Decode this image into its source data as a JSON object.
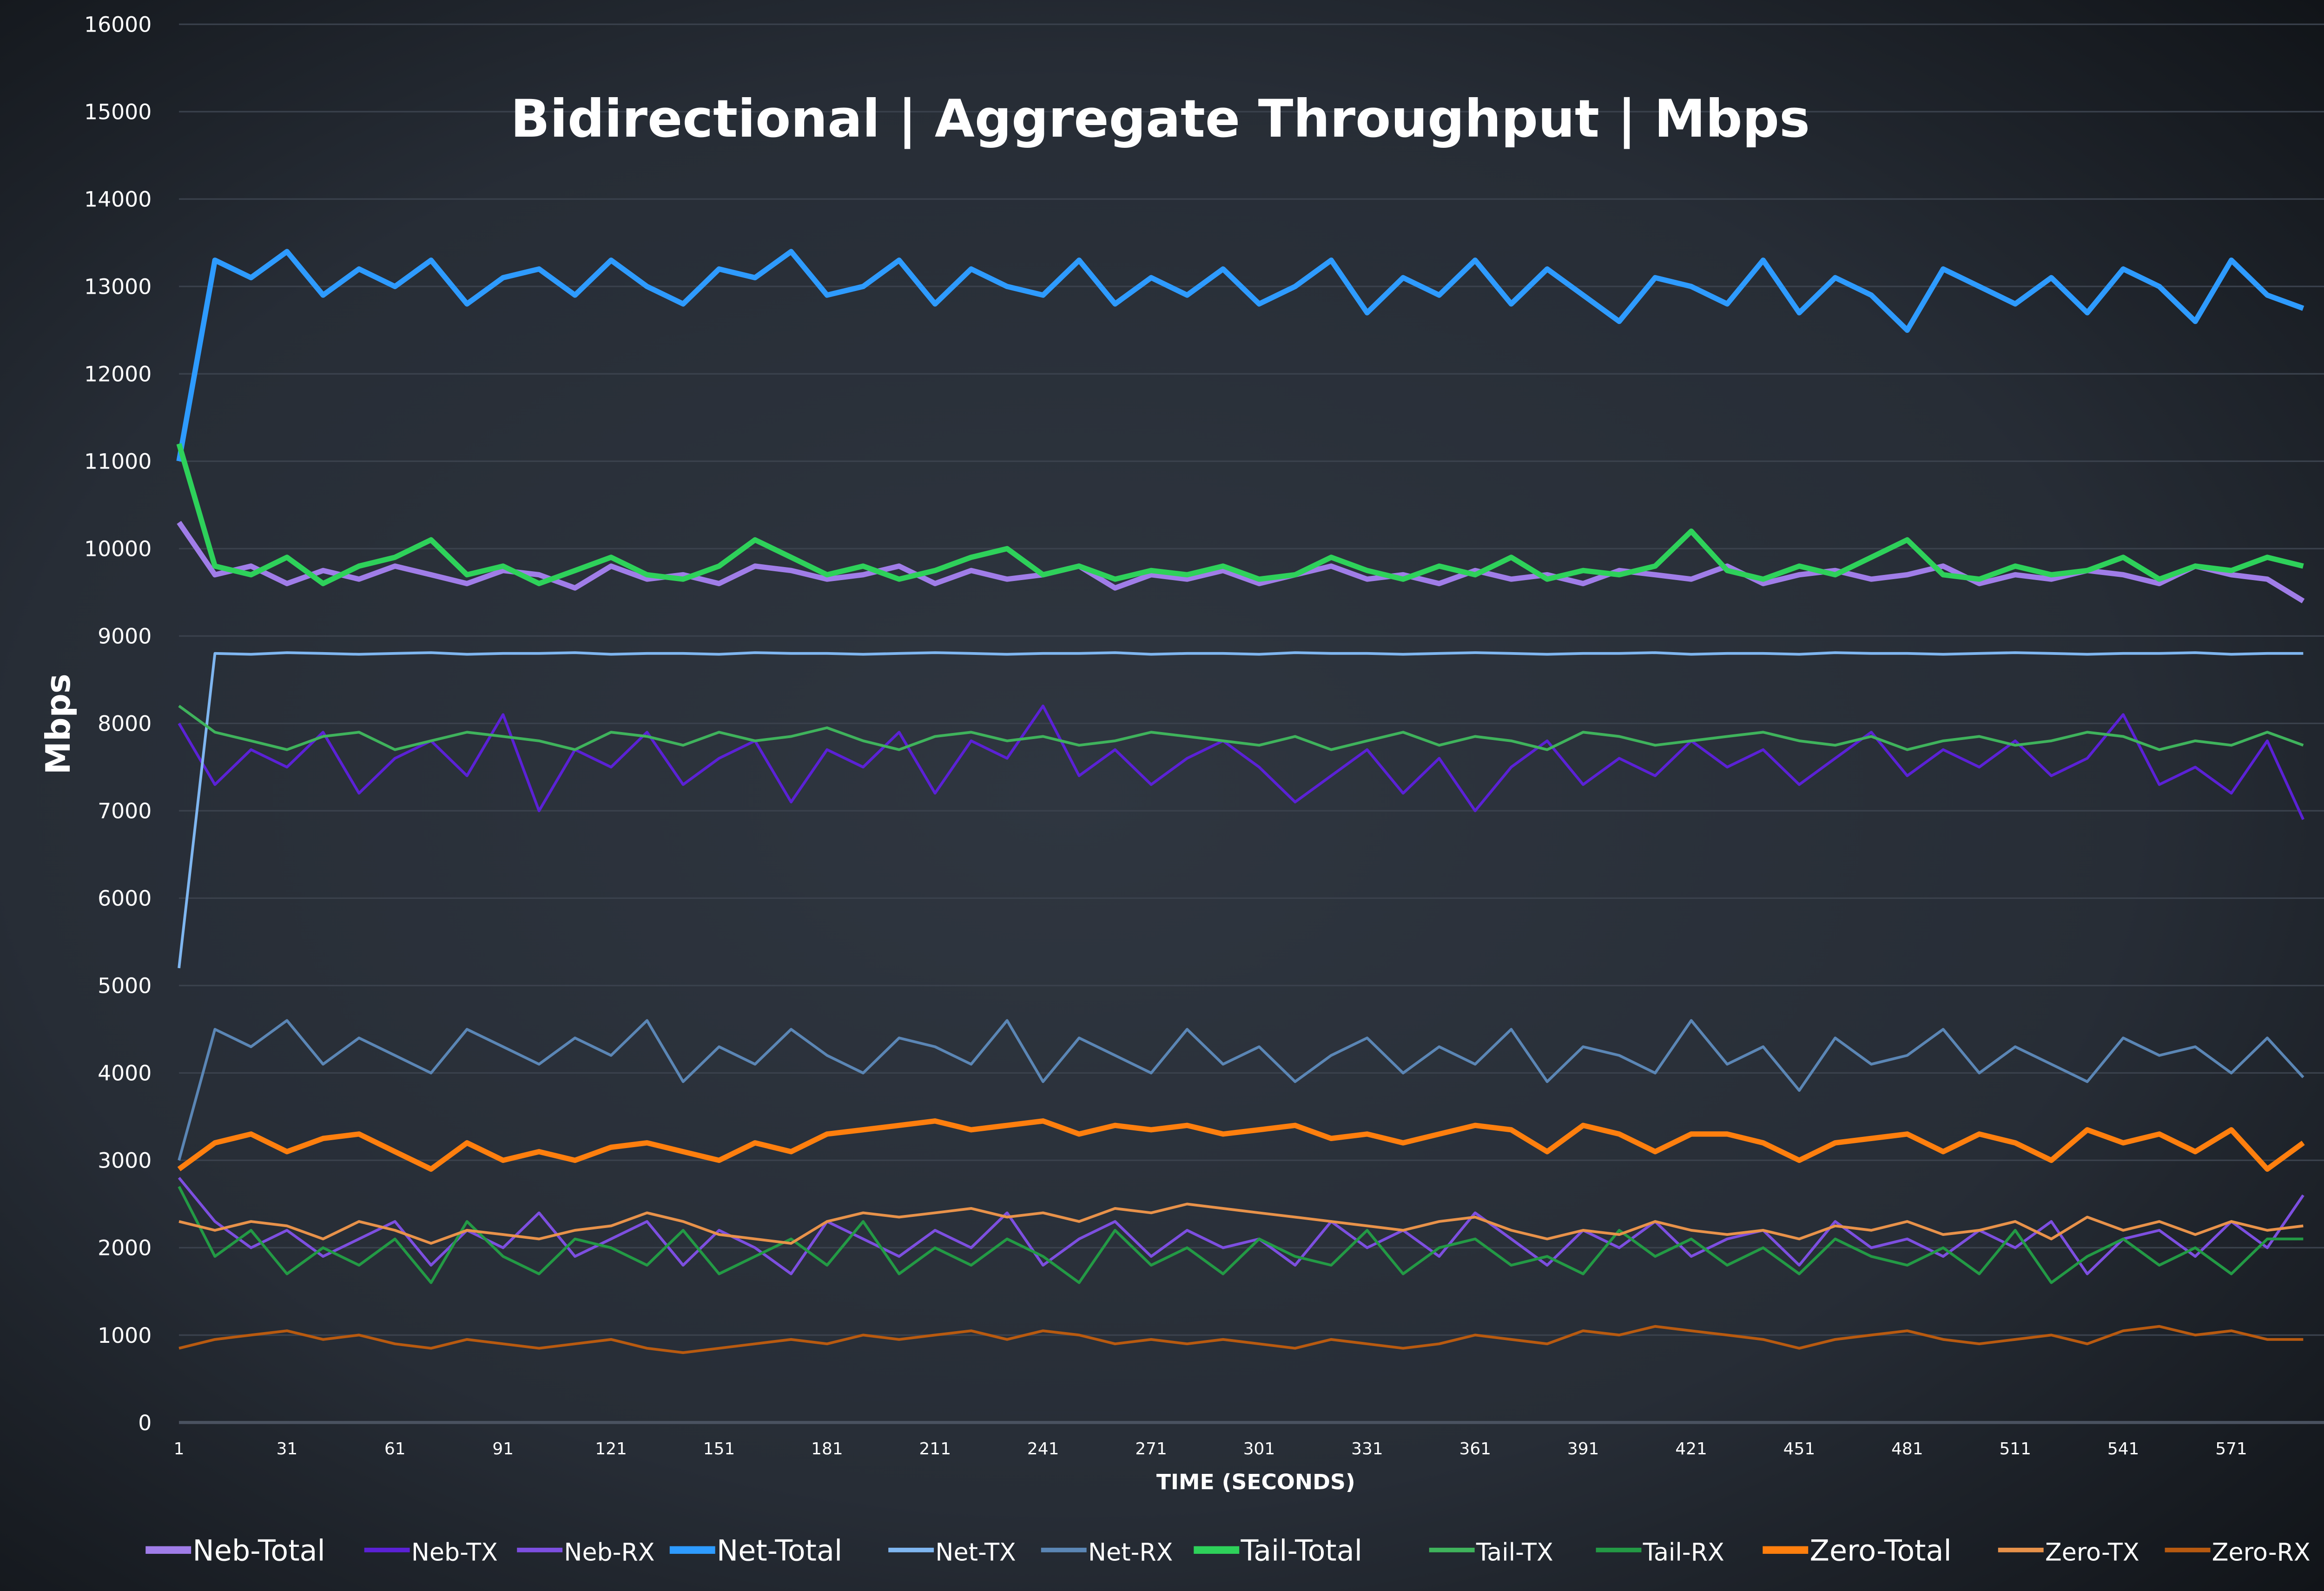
{
  "chart_data": {
    "type": "line",
    "title": "Bidirectional | Aggregate Throughput | Mbps",
    "xlabel": "TIME (SECONDS)",
    "ylabel": "Mbps",
    "ylim": [
      0,
      16000
    ],
    "xlim": [
      1,
      600
    ],
    "grid": true,
    "legend_position": "bottom",
    "y_ticks": [
      0,
      1000,
      2000,
      3000,
      4000,
      5000,
      6000,
      7000,
      8000,
      9000,
      10000,
      11000,
      12000,
      13000,
      14000,
      15000,
      16000
    ],
    "x_ticks": [
      1,
      31,
      61,
      91,
      121,
      151,
      181,
      211,
      241,
      271,
      301,
      331,
      361,
      391,
      421,
      451,
      481,
      511,
      541,
      571
    ],
    "x": [
      1,
      11,
      21,
      31,
      41,
      51,
      61,
      71,
      81,
      91,
      101,
      111,
      121,
      131,
      141,
      151,
      161,
      171,
      181,
      191,
      201,
      211,
      221,
      231,
      241,
      251,
      261,
      271,
      281,
      291,
      301,
      311,
      321,
      331,
      341,
      351,
      361,
      371,
      381,
      391,
      401,
      411,
      421,
      431,
      441,
      451,
      461,
      471,
      481,
      491,
      501,
      511,
      521,
      531,
      541,
      551,
      561,
      571,
      581,
      591
    ],
    "series": [
      {
        "name": "Neb-Total",
        "color": "#a07de8",
        "thick": true,
        "values": [
          10300,
          9700,
          9800,
          9600,
          9750,
          9650,
          9800,
          9700,
          9600,
          9750,
          9700,
          9550,
          9800,
          9650,
          9700,
          9600,
          9800,
          9750,
          9650,
          9700,
          9800,
          9600,
          9750,
          9650,
          9700,
          9800,
          9550,
          9700,
          9650,
          9750,
          9600,
          9700,
          9800,
          9650,
          9700,
          9600,
          9750,
          9650,
          9700,
          9600,
          9750,
          9700,
          9650,
          9800,
          9600,
          9700,
          9750,
          9650,
          9700,
          9800,
          9600,
          9700,
          9650,
          9750,
          9700,
          9600,
          9800,
          9700,
          9650,
          9400
        ]
      },
      {
        "name": "Neb-TX",
        "color": "#5b21d6",
        "thick": false,
        "values": [
          8000,
          7300,
          7700,
          7500,
          7900,
          7200,
          7600,
          7800,
          7400,
          8100,
          7000,
          7700,
          7500,
          7900,
          7300,
          7600,
          7800,
          7100,
          7700,
          7500,
          7900,
          7200,
          7800,
          7600,
          8200,
          7400,
          7700,
          7300,
          7600,
          7800,
          7500,
          7100,
          7400,
          7700,
          7200,
          7600,
          7000,
          7500,
          7800,
          7300,
          7600,
          7400,
          7800,
          7500,
          7700,
          7300,
          7600,
          7900,
          7400,
          7700,
          7500,
          7800,
          7400,
          7600,
          8100,
          7300,
          7500,
          7200,
          7800,
          6900
        ]
      },
      {
        "name": "Neb-RX",
        "color": "#7d4fe0",
        "thick": false,
        "values": [
          2800,
          2300,
          2000,
          2200,
          1900,
          2100,
          2300,
          1800,
          2200,
          2000,
          2400,
          1900,
          2100,
          2300,
          1800,
          2200,
          2000,
          1700,
          2300,
          2100,
          1900,
          2200,
          2000,
          2400,
          1800,
          2100,
          2300,
          1900,
          2200,
          2000,
          2100,
          1800,
          2300,
          2000,
          2200,
          1900,
          2400,
          2100,
          1800,
          2200,
          2000,
          2300,
          1900,
          2100,
          2200,
          1800,
          2300,
          2000,
          2100,
          1900,
          2200,
          2000,
          2300,
          1700,
          2100,
          2200,
          1900,
          2300,
          2000,
          2600
        ]
      },
      {
        "name": "Net-Total",
        "color": "#2e9bff",
        "thick": true,
        "values": [
          11000,
          13300,
          13100,
          13400,
          12900,
          13200,
          13000,
          13300,
          12800,
          13100,
          13200,
          12900,
          13300,
          13000,
          12800,
          13200,
          13100,
          13400,
          12900,
          13000,
          13300,
          12800,
          13200,
          13000,
          12900,
          13300,
          12800,
          13100,
          12900,
          13200,
          12800,
          13000,
          13300,
          12700,
          13100,
          12900,
          13300,
          12800,
          13200,
          12900,
          12600,
          13100,
          13000,
          12800,
          13300,
          12700,
          13100,
          12900,
          12500,
          13200,
          13000,
          12800,
          13100,
          12700,
          13200,
          13000,
          12600,
          13300,
          12900,
          12750
        ]
      },
      {
        "name": "Net-TX",
        "color": "#7fb6f0",
        "thick": false,
        "values": [
          5200,
          8800,
          8790,
          8810,
          8800,
          8790,
          8800,
          8810,
          8790,
          8800,
          8800,
          8810,
          8790,
          8800,
          8800,
          8790,
          8810,
          8800,
          8800,
          8790,
          8800,
          8810,
          8800,
          8790,
          8800,
          8800,
          8810,
          8790,
          8800,
          8800,
          8790,
          8810,
          8800,
          8800,
          8790,
          8800,
          8810,
          8800,
          8790,
          8800,
          8800,
          8810,
          8790,
          8800,
          8800,
          8790,
          8810,
          8800,
          8800,
          8790,
          8800,
          8810,
          8800,
          8790,
          8800,
          8800,
          8810,
          8790,
          8800,
          8800
        ]
      },
      {
        "name": "Net-RX",
        "color": "#5b86b5",
        "thick": false,
        "values": [
          3000,
          4500,
          4300,
          4600,
          4100,
          4400,
          4200,
          4000,
          4500,
          4300,
          4100,
          4400,
          4200,
          4600,
          3900,
          4300,
          4100,
          4500,
          4200,
          4000,
          4400,
          4300,
          4100,
          4600,
          3900,
          4400,
          4200,
          4000,
          4500,
          4100,
          4300,
          3900,
          4200,
          4400,
          4000,
          4300,
          4100,
          4500,
          3900,
          4300,
          4200,
          4000,
          4600,
          4100,
          4300,
          3800,
          4400,
          4100,
          4200,
          4500,
          4000,
          4300,
          4100,
          3900,
          4400,
          4200,
          4300,
          4000,
          4400,
          3950
        ]
      },
      {
        "name": "Tail-Total",
        "color": "#2ed15a",
        "thick": true,
        "values": [
          11200,
          9800,
          9700,
          9900,
          9600,
          9800,
          9900,
          10100,
          9700,
          9800,
          9600,
          9750,
          9900,
          9700,
          9650,
          9800,
          10100,
          9900,
          9700,
          9800,
          9650,
          9750,
          9900,
          10000,
          9700,
          9800,
          9650,
          9750,
          9700,
          9800,
          9650,
          9700,
          9900,
          9750,
          9650,
          9800,
          9700,
          9900,
          9650,
          9750,
          9700,
          9800,
          10200,
          9750,
          9650,
          9800,
          9700,
          9900,
          10100,
          9700,
          9650,
          9800,
          9700,
          9750,
          9900,
          9650,
          9800,
          9750,
          9900,
          9800
        ]
      },
      {
        "name": "Tail-TX",
        "color": "#3fb35c",
        "thick": false,
        "values": [
          8200,
          7900,
          7800,
          7700,
          7850,
          7900,
          7700,
          7800,
          7900,
          7850,
          7800,
          7700,
          7900,
          7850,
          7750,
          7900,
          7800,
          7850,
          7950,
          7800,
          7700,
          7850,
          7900,
          7800,
          7850,
          7750,
          7800,
          7900,
          7850,
          7800,
          7750,
          7850,
          7700,
          7800,
          7900,
          7750,
          7850,
          7800,
          7700,
          7900,
          7850,
          7750,
          7800,
          7850,
          7900,
          7800,
          7750,
          7850,
          7700,
          7800,
          7850,
          7750,
          7800,
          7900,
          7850,
          7700,
          7800,
          7750,
          7900,
          7750
        ]
      },
      {
        "name": "Tail-RX",
        "color": "#239a45",
        "thick": false,
        "values": [
          2700,
          1900,
          2200,
          1700,
          2000,
          1800,
          2100,
          1600,
          2300,
          1900,
          1700,
          2100,
          2000,
          1800,
          2200,
          1700,
          1900,
          2100,
          1800,
          2300,
          1700,
          2000,
          1800,
          2100,
          1900,
          1600,
          2200,
          1800,
          2000,
          1700,
          2100,
          1900,
          1800,
          2200,
          1700,
          2000,
          2100,
          1800,
          1900,
          1700,
          2200,
          1900,
          2100,
          1800,
          2000,
          1700,
          2100,
          1900,
          1800,
          2000,
          1700,
          2200,
          1600,
          1900,
          2100,
          1800,
          2000,
          1700,
          2100,
          2100
        ]
      },
      {
        "name": "Zero-Total",
        "color": "#ff7f0e",
        "thick": true,
        "values": [
          2900,
          3200,
          3300,
          3100,
          3250,
          3300,
          3100,
          2900,
          3200,
          3000,
          3100,
          3000,
          3150,
          3200,
          3100,
          3000,
          3200,
          3100,
          3300,
          3350,
          3400,
          3450,
          3350,
          3400,
          3450,
          3300,
          3400,
          3350,
          3400,
          3300,
          3350,
          3400,
          3250,
          3300,
          3200,
          3300,
          3400,
          3350,
          3100,
          3400,
          3300,
          3100,
          3300,
          3300,
          3200,
          3000,
          3200,
          3250,
          3300,
          3100,
          3300,
          3200,
          3000,
          3350,
          3200,
          3300,
          3100,
          3350,
          2900,
          3200
        ]
      },
      {
        "name": "Zero-TX",
        "color": "#e8924a",
        "thick": false,
        "values": [
          2300,
          2200,
          2300,
          2250,
          2100,
          2300,
          2200,
          2050,
          2200,
          2150,
          2100,
          2200,
          2250,
          2400,
          2300,
          2150,
          2100,
          2050,
          2300,
          2400,
          2350,
          2400,
          2450,
          2350,
          2400,
          2300,
          2450,
          2400,
          2500,
          2450,
          2400,
          2350,
          2300,
          2250,
          2200,
          2300,
          2350,
          2200,
          2100,
          2200,
          2150,
          2300,
          2200,
          2150,
          2200,
          2100,
          2250,
          2200,
          2300,
          2150,
          2200,
          2300,
          2100,
          2350,
          2200,
          2300,
          2150,
          2300,
          2200,
          2250
        ]
      },
      {
        "name": "Zero-RX",
        "color": "#b85a10",
        "thick": false,
        "values": [
          850,
          950,
          1000,
          1050,
          950,
          1000,
          900,
          850,
          950,
          900,
          850,
          900,
          950,
          850,
          800,
          850,
          900,
          950,
          900,
          1000,
          950,
          1000,
          1050,
          950,
          1050,
          1000,
          900,
          950,
          900,
          950,
          900,
          850,
          950,
          900,
          850,
          900,
          1000,
          950,
          900,
          1050,
          1000,
          1100,
          1050,
          1000,
          950,
          850,
          950,
          1000,
          1050,
          950,
          900,
          950,
          1000,
          900,
          1050,
          1100,
          1000,
          1050,
          950,
          950
        ]
      }
    ]
  }
}
